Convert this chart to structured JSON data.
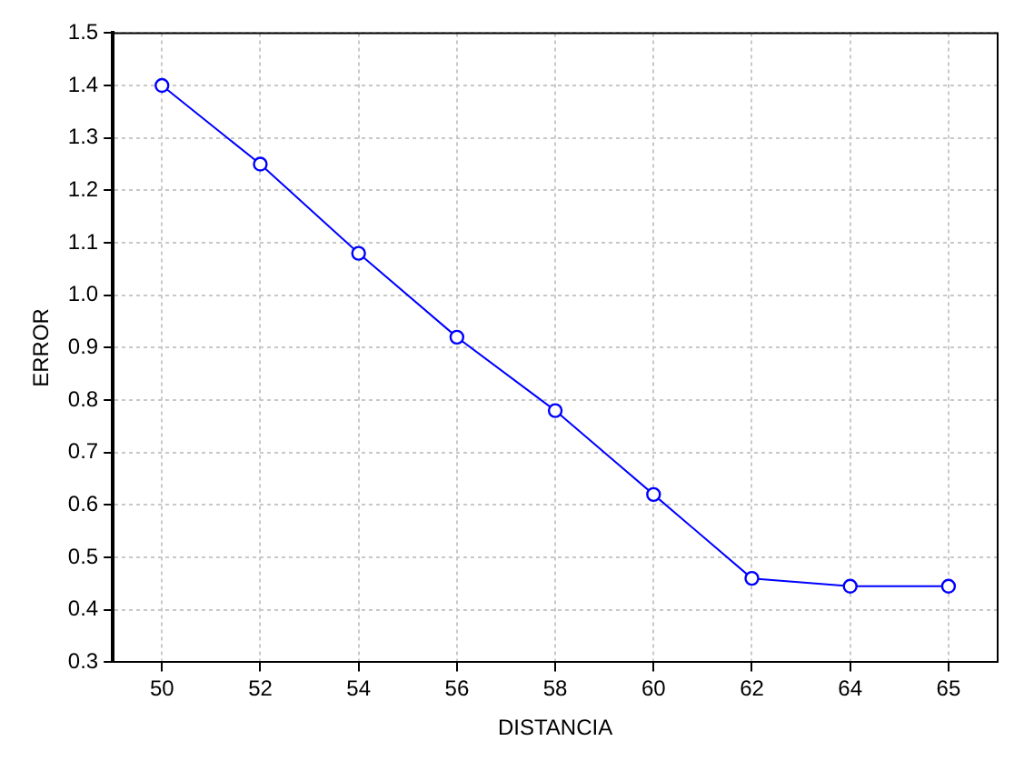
{
  "chart_data": {
    "type": "line",
    "xlabel": "DISTANCIA",
    "ylabel": "ERROR",
    "categories": [
      "50",
      "52",
      "54",
      "56",
      "58",
      "60",
      "62",
      "64",
      "65"
    ],
    "series": [
      {
        "color": "#0000ff",
        "values": [
          1.4,
          1.25,
          1.08,
          0.92,
          0.78,
          0.62,
          0.46,
          0.445,
          0.445
        ]
      }
    ],
    "ylim": [
      0.3,
      1.5
    ],
    "yticks": [
      0.3,
      0.4,
      0.5,
      0.6,
      0.7,
      0.8,
      0.9,
      {
        "value": 1,
        "label": "1.0"
      },
      1.1,
      1.2,
      1.3,
      1.4,
      1.5
    ],
    "grid": true,
    "marker": "circle",
    "line_style": "solid",
    "legend": false
  }
}
